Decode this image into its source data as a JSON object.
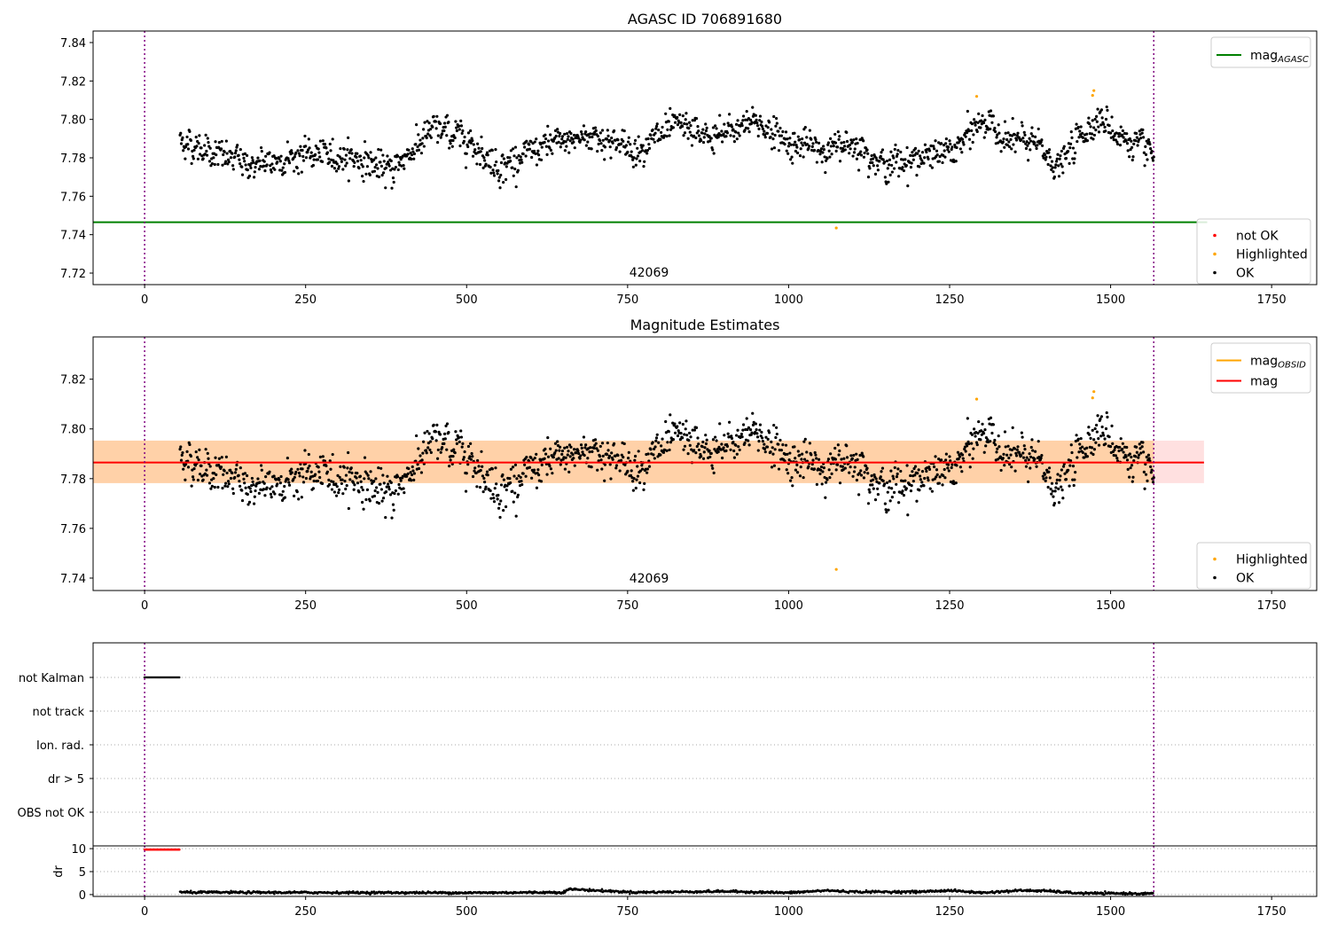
{
  "chart_data": [
    {
      "type": "scatter",
      "title": "AGASC ID 706891680",
      "xlim": [
        -80,
        1820
      ],
      "ylim": [
        7.714,
        7.846
      ],
      "xticks": [
        0,
        250,
        500,
        750,
        1000,
        1250,
        1500,
        1750
      ],
      "yticks": [
        7.72,
        7.74,
        7.76,
        7.78,
        7.8,
        7.82,
        7.84
      ],
      "annotation": "42069",
      "vlines": [
        0,
        1567
      ],
      "hline": {
        "name": "mag_AGASC",
        "y": 7.7465,
        "x": [
          -80,
          1650
        ],
        "color": "#008000"
      },
      "ok_series": {
        "x_start": 55,
        "x_end": 1567,
        "n": 1513,
        "mean": 7.786,
        "profile": [
          [
            55,
            7.789
          ],
          [
            120,
            7.781
          ],
          [
            170,
            7.776
          ],
          [
            250,
            7.782
          ],
          [
            330,
            7.78
          ],
          [
            380,
            7.773
          ],
          [
            450,
            7.795
          ],
          [
            500,
            7.79
          ],
          [
            550,
            7.775
          ],
          [
            620,
            7.786
          ],
          [
            700,
            7.792
          ],
          [
            760,
            7.784
          ],
          [
            830,
            7.797
          ],
          [
            880,
            7.79
          ],
          [
            950,
            7.799
          ],
          [
            1000,
            7.788
          ],
          [
            1060,
            7.784
          ],
          [
            1100,
            7.788
          ],
          [
            1150,
            7.776
          ],
          [
            1200,
            7.78
          ],
          [
            1260,
            7.784
          ],
          [
            1300,
            7.8
          ],
          [
            1340,
            7.789
          ],
          [
            1380,
            7.788
          ],
          [
            1420,
            7.775
          ],
          [
            1450,
            7.79
          ],
          [
            1480,
            7.801
          ],
          [
            1520,
            7.79
          ],
          [
            1567,
            7.782
          ]
        ]
      },
      "highlighted": [
        [
          1074,
          7.7435
        ],
        [
          1292,
          7.812
        ],
        [
          1472,
          7.8125
        ],
        [
          1474,
          7.815
        ]
      ],
      "legends": [
        {
          "position": "top-right",
          "entries": [
            {
              "label": "mag",
              "subscript": "AGASC",
              "kind": "line",
              "color": "#008000"
            }
          ]
        },
        {
          "position": "lower-right",
          "entries": [
            {
              "label": "not OK",
              "kind": "dot",
              "color": "#ff0000"
            },
            {
              "label": "Highlighted",
              "kind": "dot",
              "color": "#ffa500"
            },
            {
              "label": "OK",
              "kind": "dot",
              "color": "#000000"
            }
          ]
        }
      ]
    },
    {
      "type": "scatter",
      "title": "Magnitude Estimates",
      "xlim": [
        -80,
        1820
      ],
      "ylim": [
        7.735,
        7.837
      ],
      "xticks": [
        0,
        250,
        500,
        750,
        1000,
        1250,
        1500,
        1750
      ],
      "yticks": [
        7.74,
        7.76,
        7.78,
        7.8,
        7.82
      ],
      "annotation": "42069",
      "vlines": [
        0,
        1567
      ],
      "mag_band": {
        "y": 7.7865,
        "low": 7.7782,
        "high": 7.7953,
        "x": [
          -80,
          1645
        ]
      },
      "mag_obsid_band": {
        "low": 7.7782,
        "high": 7.7953,
        "x": [
          -80,
          1567
        ]
      },
      "legends": [
        {
          "position": "top-right",
          "entries": [
            {
              "label": "mag",
              "subscript": "OBSID",
              "kind": "line",
              "color": "#ffa500"
            },
            {
              "label": "mag",
              "kind": "line",
              "color": "#ff0000"
            }
          ]
        },
        {
          "position": "lower-right",
          "entries": [
            {
              "label": "Highlighted",
              "kind": "dot",
              "color": "#ffa500"
            },
            {
              "label": "OK",
              "kind": "dot",
              "color": "#000000"
            }
          ]
        }
      ]
    },
    {
      "type": "scatter",
      "title": "",
      "xlim": [
        -80,
        1820
      ],
      "categories": [
        "not Kalman",
        "not track",
        "Ion. rad.",
        "dr > 5",
        "OBS not OK"
      ],
      "flag_segments": [
        {
          "category": "not Kalman",
          "x": [
            0,
            55
          ]
        }
      ],
      "vlines": [
        0,
        1567
      ]
    },
    {
      "type": "scatter",
      "title": "",
      "xlim": [
        -80,
        1820
      ],
      "ylim": [
        -0.4,
        10.6
      ],
      "yticks": [
        0,
        5,
        10
      ],
      "ylabel": "dr",
      "xticks": [
        0,
        250,
        500,
        750,
        1000,
        1250,
        1500,
        1750
      ],
      "flagged_dr": {
        "x": [
          0,
          55
        ],
        "y": 9.8,
        "color": "#ff0000"
      },
      "dr_series": {
        "x_start": 55,
        "x_end": 1567,
        "levels": [
          [
            55,
            0.5
          ],
          [
            250,
            0.45
          ],
          [
            500,
            0.4
          ],
          [
            650,
            0.5
          ],
          [
            660,
            1.2
          ],
          [
            700,
            0.9
          ],
          [
            760,
            0.5
          ],
          [
            900,
            0.7
          ],
          [
            1000,
            0.4
          ],
          [
            1060,
            0.9
          ],
          [
            1100,
            0.6
          ],
          [
            1200,
            0.6
          ],
          [
            1250,
            0.9
          ],
          [
            1300,
            0.4
          ],
          [
            1360,
            0.9
          ],
          [
            1400,
            0.8
          ],
          [
            1450,
            0.3
          ],
          [
            1567,
            0.2
          ]
        ]
      },
      "vlines": [
        0,
        1567
      ]
    }
  ]
}
